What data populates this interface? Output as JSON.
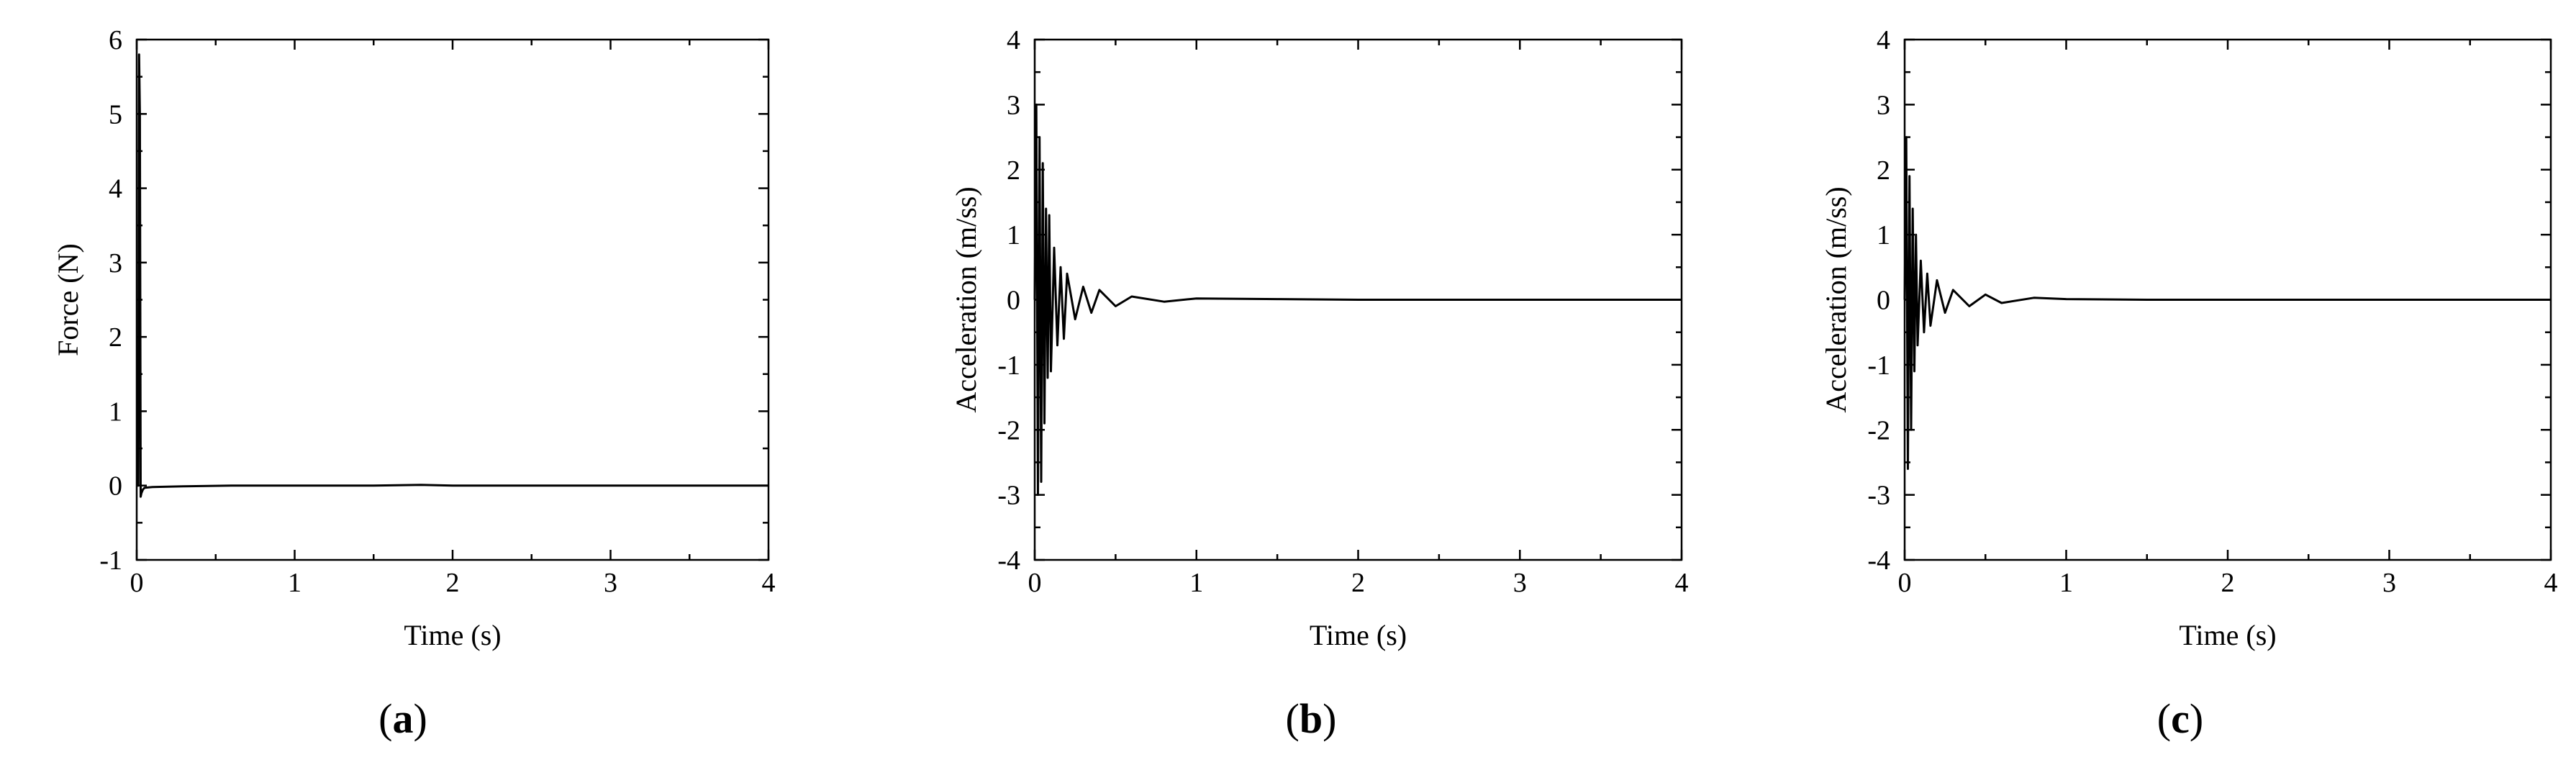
{
  "chart_data": [
    {
      "type": "line",
      "panel_label": "a",
      "xlabel": "Time (s)",
      "ylabel": "Force (N)",
      "xlim": [
        0,
        4
      ],
      "ylim": [
        -1,
        6
      ],
      "xticks": [
        0,
        1,
        2,
        3,
        4
      ],
      "yticks": [
        -1,
        0,
        1,
        2,
        3,
        4,
        5,
        6
      ],
      "grid": false,
      "series": [
        {
          "x": [
            0,
            0.01,
            0.015,
            0.02,
            0.025,
            0.03,
            0.04,
            0.05,
            0.1,
            0.3,
            0.6,
            1.0,
            1.5,
            1.8,
            2.0,
            2.5,
            3.0,
            3.5,
            4.0
          ],
          "values": [
            0,
            0,
            5.8,
            5.0,
            -0.15,
            -0.1,
            -0.05,
            -0.03,
            -0.02,
            -0.01,
            0,
            0,
            0,
            0.01,
            0,
            0,
            0,
            0,
            0
          ]
        }
      ]
    },
    {
      "type": "line",
      "panel_label": "b",
      "xlabel": "Time (s)",
      "ylabel": "Acceleration (m/ss)",
      "xlim": [
        0,
        4
      ],
      "ylim": [
        -4,
        4
      ],
      "xticks": [
        0,
        1,
        2,
        3,
        4
      ],
      "yticks": [
        -4,
        -3,
        -2,
        -1,
        0,
        1,
        2,
        3,
        4
      ],
      "grid": false,
      "series": [
        {
          "x": [
            0,
            0.01,
            0.02,
            0.03,
            0.04,
            0.05,
            0.06,
            0.07,
            0.08,
            0.09,
            0.1,
            0.12,
            0.14,
            0.16,
            0.18,
            0.2,
            0.25,
            0.3,
            0.35,
            0.4,
            0.5,
            0.6,
            0.8,
            1.0,
            1.5,
            2.0,
            3.0,
            4.0
          ],
          "values": [
            0,
            3.0,
            -3.0,
            2.5,
            -2.8,
            2.1,
            -1.9,
            1.4,
            -1.2,
            1.3,
            -1.1,
            0.8,
            -0.7,
            0.5,
            -0.6,
            0.4,
            -0.3,
            0.2,
            -0.2,
            0.15,
            -0.1,
            0.05,
            -0.03,
            0.02,
            0.01,
            0,
            0,
            0
          ]
        }
      ]
    },
    {
      "type": "line",
      "panel_label": "c",
      "xlabel": "Time (s)",
      "ylabel": "Acceleration (m/ss)",
      "xlim": [
        0,
        4
      ],
      "ylim": [
        -4,
        4
      ],
      "xticks": [
        0,
        1,
        2,
        3,
        4
      ],
      "yticks": [
        -4,
        -3,
        -2,
        -1,
        0,
        1,
        2,
        3,
        4
      ],
      "grid": false,
      "series": [
        {
          "x": [
            0,
            0.01,
            0.02,
            0.03,
            0.04,
            0.05,
            0.06,
            0.07,
            0.08,
            0.1,
            0.12,
            0.14,
            0.16,
            0.2,
            0.25,
            0.3,
            0.4,
            0.5,
            0.6,
            0.8,
            1.0,
            1.5,
            2.0,
            3.0,
            4.0
          ],
          "values": [
            0,
            2.5,
            -2.6,
            1.9,
            -2.0,
            1.4,
            -1.1,
            1.0,
            -0.7,
            0.6,
            -0.5,
            0.4,
            -0.4,
            0.3,
            -0.2,
            0.15,
            -0.1,
            0.08,
            -0.05,
            0.03,
            0.01,
            0,
            0,
            0,
            0
          ]
        }
      ]
    }
  ]
}
